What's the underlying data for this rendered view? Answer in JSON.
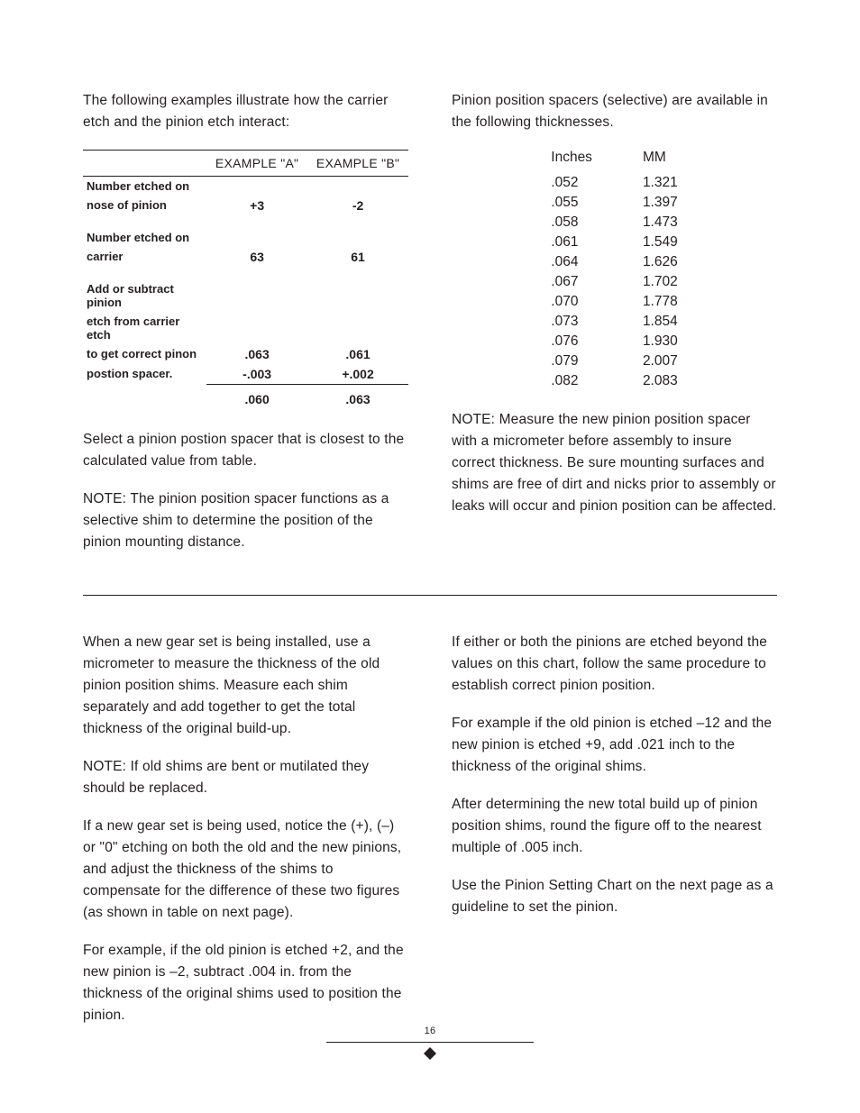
{
  "page_number": "16",
  "top": {
    "left": {
      "intro": "The following examples illustrate how the carrier etch and the pinion etch interact:",
      "table": {
        "headers": [
          "EXAMPLE \"A\"",
          "EXAMPLE \"B\""
        ],
        "rows": [
          {
            "label_l1": "Number etched on",
            "label_l2": "nose of pinion",
            "a": "+3",
            "b": "-2"
          },
          {
            "label_l1": "Number etched on",
            "label_l2": "carrier",
            "a": "63",
            "b": "61"
          },
          {
            "label_l1": "Add or subtract pinion",
            "label_l2": "etch from carrier etch",
            "label_l3": "to get correct pinon",
            "label_l4": "postion spacer.",
            "a1": ".063",
            "a2": "-.003",
            "b1": ".061",
            "b2": "+.002"
          }
        ],
        "result": {
          "a": ".060",
          "b": ".063"
        }
      },
      "p2": "Select a pinion postion spacer that is closest to the calculated value from table.",
      "p3": "NOTE:  The pinion position spacer functions as a selective shim to determine the position of the pinion mounting distance."
    },
    "right": {
      "intro": "Pinion position spacers (selective) are available in the following thicknesses.",
      "table": {
        "headers": [
          "Inches",
          "MM"
        ],
        "rows": [
          [
            ".052",
            "1.321"
          ],
          [
            ".055",
            "1.397"
          ],
          [
            ".058",
            "1.473"
          ],
          [
            ".061",
            "1.549"
          ],
          [
            ".064",
            "1.626"
          ],
          [
            ".067",
            "1.702"
          ],
          [
            ".070",
            "1.778"
          ],
          [
            ".073",
            "1.854"
          ],
          [
            ".076",
            "1.930"
          ],
          [
            ".079",
            "2.007"
          ],
          [
            ".082",
            "2.083"
          ]
        ]
      },
      "note": "NOTE: Measure the new pinion position spacer with a micrometer before assembly to insure correct thickness. Be sure mounting surfaces and shims are free of dirt and nicks prior to assembly or leaks will occur and pinion position can be affected."
    }
  },
  "bottom": {
    "left": [
      "When a new gear set is being installed, use a micrometer to measure the thickness of the old pinion position shims.  Measure each shim separately and add together to get the total thickness of the original build-up.",
      "NOTE: If old shims are bent or mutilated they should be replaced.",
      "If a new gear set is being used, notice the (+), (–) or \"0\" etching on both the old and the new pinions, and adjust the thickness of the shims to compensate for the difference of these two figures (as shown in table on next page).",
      "For example, if the old pinion is etched +2, and the new pinion is –2, subtract .004 in. from the thickness of the original shims used to position the pinion."
    ],
    "right": [
      "If either or both the pinions are etched beyond the values on this chart, follow the same procedure to establish correct pinion position.",
      "For example if the old pinion is etched –12 and the new pinion is etched +9, add .021 inch to the thickness of the original shims.",
      "After determining the new total build up of pinion position shims, round the figure off to the nearest multiple of .005 inch.",
      "Use the Pinion Setting Chart on the next page as a guideline to set the pinion."
    ]
  }
}
